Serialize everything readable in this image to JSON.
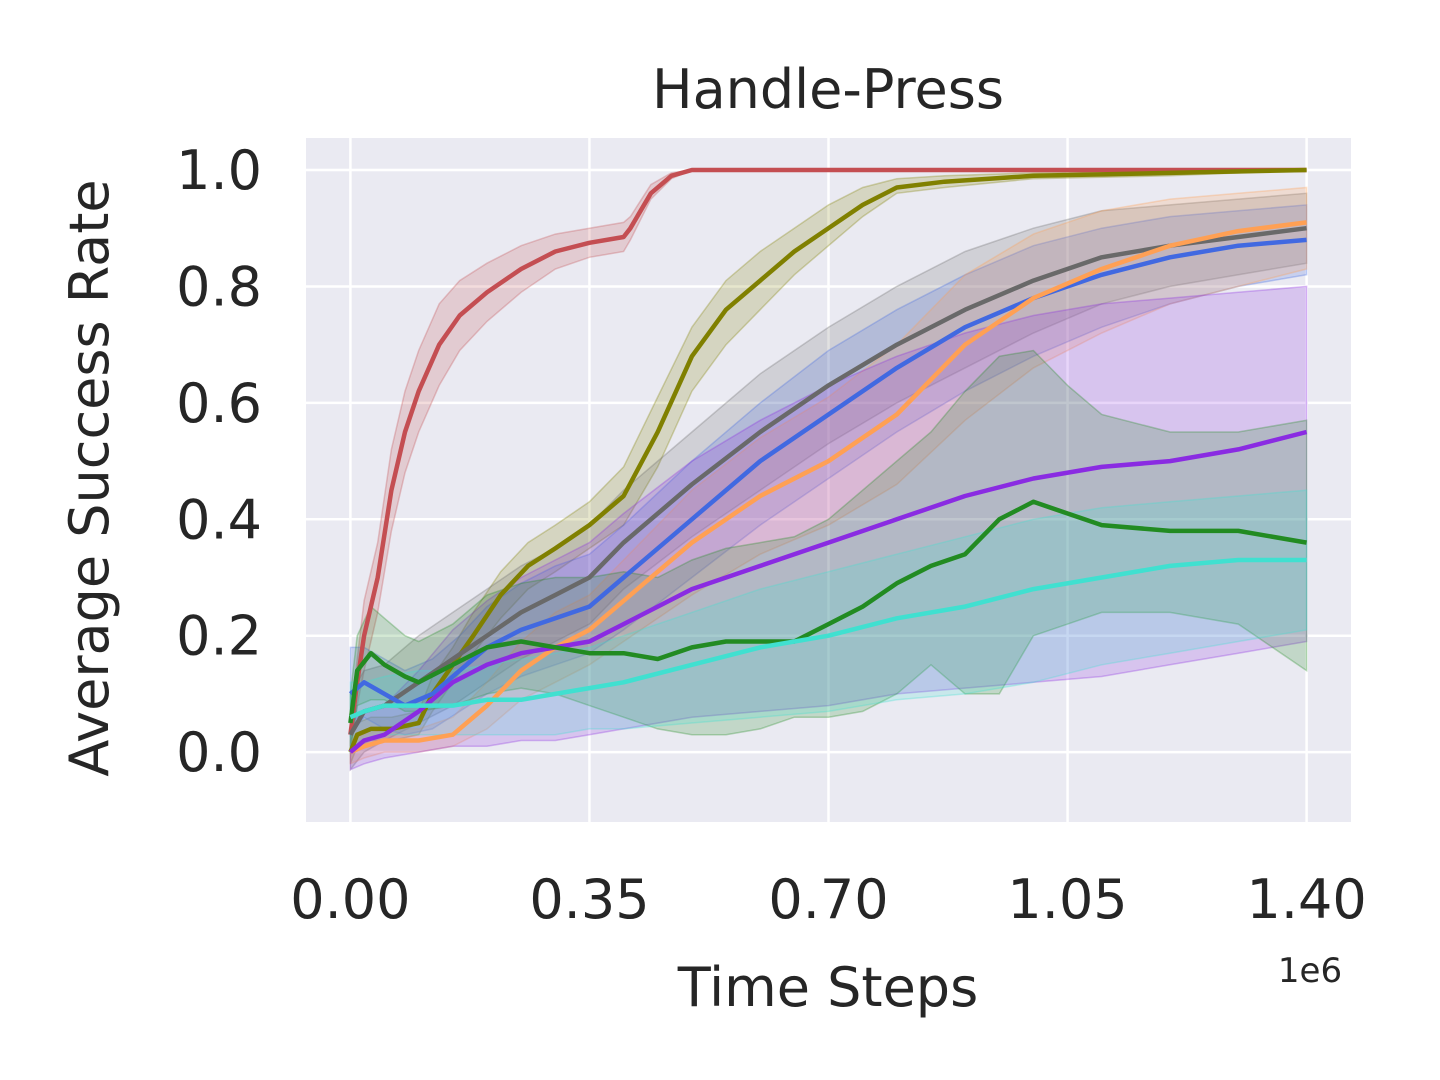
{
  "chart_data": {
    "type": "line",
    "title": "Handle-Press",
    "xlabel": "Time Steps",
    "ylabel": "Average Success Rate",
    "x_offset_label": "1e6",
    "xlim": [
      -0.065,
      1.465
    ],
    "ylim": [
      -0.12,
      1.055
    ],
    "xticks": [
      0.0,
      0.35,
      0.7,
      1.05,
      1.4
    ],
    "xtick_labels": [
      "0.00",
      "0.35",
      "0.70",
      "1.05",
      "1.40"
    ],
    "yticks": [
      0.0,
      0.2,
      0.4,
      0.6,
      0.8,
      1.0
    ],
    "ytick_labels": [
      "0.0",
      "0.2",
      "0.4",
      "0.6",
      "0.8",
      "1.0"
    ],
    "grid": true,
    "background": "#eaeaf2",
    "series": [
      {
        "color": "#c44e52",
        "x": [
          0,
          0.01,
          0.02,
          0.04,
          0.06,
          0.08,
          0.1,
          0.13,
          0.16,
          0.2,
          0.25,
          0.3,
          0.35,
          0.4,
          0.41,
          0.44,
          0.47,
          0.5,
          0.6,
          0.8,
          1.0,
          1.2,
          1.4
        ],
        "y": [
          0.03,
          0.12,
          0.2,
          0.3,
          0.45,
          0.55,
          0.62,
          0.7,
          0.75,
          0.79,
          0.83,
          0.86,
          0.875,
          0.885,
          0.9,
          0.96,
          0.99,
          1.0,
          1.0,
          1.0,
          1.0,
          1.0,
          1.0
        ],
        "lower": [
          0.01,
          0.08,
          0.14,
          0.24,
          0.38,
          0.48,
          0.55,
          0.63,
          0.69,
          0.74,
          0.79,
          0.83,
          0.85,
          0.86,
          0.88,
          0.95,
          0.985,
          1.0,
          1.0,
          1.0,
          1.0,
          1.0,
          1.0
        ],
        "upper": [
          0.06,
          0.16,
          0.26,
          0.36,
          0.52,
          0.62,
          0.69,
          0.77,
          0.81,
          0.84,
          0.87,
          0.89,
          0.9,
          0.91,
          0.92,
          0.975,
          0.995,
          1.0,
          1.0,
          1.0,
          1.0,
          1.0,
          1.0
        ]
      },
      {
        "color": "#808000",
        "x": [
          0,
          0.01,
          0.03,
          0.06,
          0.1,
          0.12,
          0.15,
          0.18,
          0.22,
          0.26,
          0.3,
          0.35,
          0.4,
          0.45,
          0.5,
          0.55,
          0.6,
          0.65,
          0.7,
          0.75,
          0.8,
          0.87,
          1.0,
          1.2,
          1.4
        ],
        "y": [
          0.0,
          0.03,
          0.04,
          0.04,
          0.05,
          0.1,
          0.15,
          0.2,
          0.27,
          0.32,
          0.35,
          0.39,
          0.44,
          0.55,
          0.68,
          0.76,
          0.81,
          0.86,
          0.9,
          0.94,
          0.97,
          0.98,
          0.99,
          0.995,
          1.0
        ],
        "lower": [
          -0.02,
          0.01,
          0.02,
          0.02,
          0.03,
          0.07,
          0.12,
          0.17,
          0.23,
          0.28,
          0.31,
          0.35,
          0.39,
          0.49,
          0.62,
          0.7,
          0.76,
          0.82,
          0.87,
          0.92,
          0.96,
          0.97,
          0.985,
          0.99,
          1.0
        ],
        "upper": [
          0.02,
          0.05,
          0.06,
          0.06,
          0.07,
          0.13,
          0.18,
          0.24,
          0.31,
          0.36,
          0.39,
          0.43,
          0.49,
          0.61,
          0.73,
          0.81,
          0.86,
          0.9,
          0.94,
          0.97,
          0.985,
          0.99,
          0.995,
          1.0,
          1.0
        ]
      },
      {
        "color": "#696969",
        "x": [
          0,
          0.02,
          0.05,
          0.1,
          0.15,
          0.2,
          0.25,
          0.3,
          0.35,
          0.4,
          0.5,
          0.6,
          0.7,
          0.8,
          0.9,
          1.0,
          1.1,
          1.2,
          1.3,
          1.4
        ],
        "y": [
          0.03,
          0.07,
          0.08,
          0.12,
          0.16,
          0.2,
          0.24,
          0.27,
          0.3,
          0.36,
          0.46,
          0.55,
          0.63,
          0.7,
          0.76,
          0.81,
          0.85,
          0.87,
          0.885,
          0.9
        ],
        "lower": [
          -0.03,
          0.0,
          0.02,
          0.05,
          0.08,
          0.12,
          0.16,
          0.19,
          0.22,
          0.28,
          0.37,
          0.45,
          0.53,
          0.6,
          0.66,
          0.72,
          0.77,
          0.8,
          0.82,
          0.84
        ],
        "upper": [
          0.1,
          0.14,
          0.15,
          0.2,
          0.24,
          0.28,
          0.32,
          0.35,
          0.39,
          0.45,
          0.55,
          0.65,
          0.73,
          0.8,
          0.86,
          0.9,
          0.93,
          0.94,
          0.95,
          0.96
        ]
      },
      {
        "color": "#4169e1",
        "x": [
          0,
          0.02,
          0.05,
          0.08,
          0.12,
          0.16,
          0.2,
          0.25,
          0.3,
          0.35,
          0.4,
          0.5,
          0.6,
          0.7,
          0.8,
          0.9,
          1.0,
          1.1,
          1.2,
          1.3,
          1.4
        ],
        "y": [
          0.1,
          0.12,
          0.1,
          0.08,
          0.1,
          0.14,
          0.18,
          0.21,
          0.23,
          0.25,
          0.3,
          0.4,
          0.5,
          0.58,
          0.66,
          0.73,
          0.78,
          0.82,
          0.85,
          0.87,
          0.88
        ],
        "lower": [
          0.03,
          0.06,
          0.04,
          0.03,
          0.04,
          0.07,
          0.1,
          0.13,
          0.15,
          0.17,
          0.21,
          0.3,
          0.39,
          0.47,
          0.55,
          0.62,
          0.68,
          0.73,
          0.77,
          0.8,
          0.82
        ],
        "upper": [
          0.18,
          0.18,
          0.16,
          0.14,
          0.16,
          0.2,
          0.25,
          0.29,
          0.32,
          0.34,
          0.39,
          0.5,
          0.6,
          0.69,
          0.76,
          0.82,
          0.87,
          0.9,
          0.92,
          0.93,
          0.94
        ]
      },
      {
        "color": "#ffa054",
        "x": [
          0,
          0.02,
          0.05,
          0.1,
          0.15,
          0.2,
          0.25,
          0.3,
          0.35,
          0.4,
          0.5,
          0.6,
          0.7,
          0.8,
          0.9,
          1.0,
          1.1,
          1.2,
          1.3,
          1.4
        ],
        "y": [
          0.0,
          0.01,
          0.02,
          0.02,
          0.03,
          0.08,
          0.14,
          0.18,
          0.21,
          0.26,
          0.36,
          0.44,
          0.5,
          0.58,
          0.7,
          0.78,
          0.83,
          0.87,
          0.895,
          0.91
        ],
        "lower": [
          -0.02,
          -0.01,
          0.0,
          0.0,
          0.01,
          0.04,
          0.09,
          0.12,
          0.15,
          0.19,
          0.27,
          0.34,
          0.39,
          0.46,
          0.57,
          0.66,
          0.72,
          0.77,
          0.8,
          0.83
        ],
        "upper": [
          0.02,
          0.03,
          0.04,
          0.04,
          0.06,
          0.12,
          0.19,
          0.24,
          0.27,
          0.33,
          0.45,
          0.54,
          0.61,
          0.7,
          0.82,
          0.89,
          0.93,
          0.95,
          0.96,
          0.97
        ]
      },
      {
        "color": "#8a2be2",
        "x": [
          0,
          0.02,
          0.05,
          0.1,
          0.15,
          0.2,
          0.25,
          0.3,
          0.35,
          0.4,
          0.5,
          0.6,
          0.7,
          0.8,
          0.9,
          1.0,
          1.1,
          1.2,
          1.3,
          1.4
        ],
        "y": [
          0.0,
          0.02,
          0.03,
          0.07,
          0.12,
          0.15,
          0.17,
          0.18,
          0.19,
          0.22,
          0.28,
          0.32,
          0.36,
          0.4,
          0.44,
          0.47,
          0.49,
          0.5,
          0.52,
          0.55
        ],
        "lower": [
          -0.03,
          -0.02,
          -0.01,
          0.0,
          0.01,
          0.01,
          0.02,
          0.02,
          0.03,
          0.04,
          0.06,
          0.07,
          0.08,
          0.1,
          0.11,
          0.12,
          0.13,
          0.15,
          0.17,
          0.19
        ],
        "upper": [
          0.05,
          0.07,
          0.08,
          0.14,
          0.21,
          0.26,
          0.3,
          0.33,
          0.36,
          0.41,
          0.5,
          0.57,
          0.63,
          0.68,
          0.72,
          0.75,
          0.77,
          0.78,
          0.79,
          0.8
        ]
      },
      {
        "color": "#228b22",
        "x": [
          0,
          0.01,
          0.03,
          0.05,
          0.08,
          0.1,
          0.15,
          0.2,
          0.25,
          0.3,
          0.35,
          0.4,
          0.45,
          0.5,
          0.55,
          0.6,
          0.65,
          0.7,
          0.75,
          0.8,
          0.85,
          0.9,
          0.95,
          1.0,
          1.05,
          1.1,
          1.2,
          1.3,
          1.4
        ],
        "y": [
          0.05,
          0.14,
          0.17,
          0.15,
          0.13,
          0.12,
          0.15,
          0.18,
          0.19,
          0.18,
          0.17,
          0.17,
          0.16,
          0.18,
          0.19,
          0.19,
          0.19,
          0.22,
          0.25,
          0.29,
          0.32,
          0.34,
          0.4,
          0.43,
          0.41,
          0.39,
          0.38,
          0.38,
          0.36
        ],
        "lower": [
          0.0,
          0.08,
          0.09,
          0.09,
          0.07,
          0.07,
          0.08,
          0.1,
          0.11,
          0.1,
          0.08,
          0.06,
          0.04,
          0.03,
          0.03,
          0.04,
          0.06,
          0.06,
          0.07,
          0.1,
          0.15,
          0.1,
          0.1,
          0.2,
          0.22,
          0.24,
          0.24,
          0.22,
          0.14
        ],
        "upper": [
          0.1,
          0.2,
          0.25,
          0.23,
          0.2,
          0.19,
          0.22,
          0.27,
          0.29,
          0.3,
          0.3,
          0.31,
          0.3,
          0.33,
          0.35,
          0.36,
          0.37,
          0.4,
          0.45,
          0.5,
          0.55,
          0.62,
          0.68,
          0.69,
          0.63,
          0.58,
          0.55,
          0.55,
          0.57
        ]
      },
      {
        "color": "#40e0d0",
        "x": [
          0,
          0.02,
          0.05,
          0.1,
          0.15,
          0.2,
          0.25,
          0.3,
          0.35,
          0.4,
          0.5,
          0.6,
          0.7,
          0.8,
          0.9,
          1.0,
          1.1,
          1.2,
          1.3,
          1.4
        ],
        "y": [
          0.06,
          0.07,
          0.08,
          0.08,
          0.08,
          0.09,
          0.09,
          0.1,
          0.11,
          0.12,
          0.15,
          0.18,
          0.2,
          0.23,
          0.25,
          0.28,
          0.3,
          0.32,
          0.33,
          0.33
        ],
        "lower": [
          0.0,
          0.02,
          0.03,
          0.03,
          0.03,
          0.03,
          0.03,
          0.03,
          0.04,
          0.04,
          0.05,
          0.06,
          0.07,
          0.09,
          0.1,
          0.12,
          0.15,
          0.17,
          0.19,
          0.21
        ],
        "upper": [
          0.12,
          0.12,
          0.13,
          0.14,
          0.14,
          0.15,
          0.16,
          0.17,
          0.18,
          0.2,
          0.24,
          0.28,
          0.31,
          0.34,
          0.37,
          0.4,
          0.42,
          0.43,
          0.44,
          0.45
        ]
      }
    ]
  }
}
